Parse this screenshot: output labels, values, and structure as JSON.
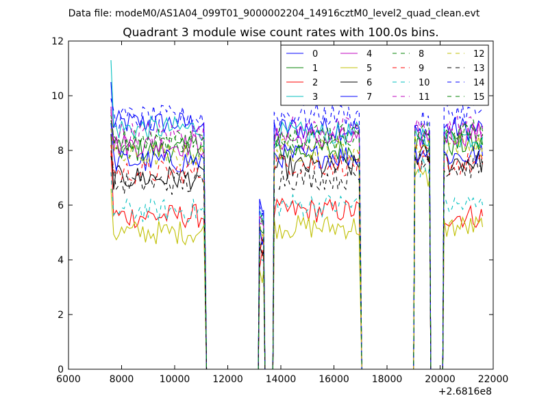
{
  "figure": {
    "suptitle": "Data file: modeM0/AS1A04_099T01_9000002204_14916cztM0_level2_quad_clean.evt"
  },
  "chart_data": {
    "type": "line",
    "title": "Quadrant 3 module wise count rates with 100.0s bins.",
    "xlabel": "",
    "ylabel": "",
    "x_offset_label": "+2.6816e8",
    "xlim": [
      6000,
      22000
    ],
    "ylim": [
      0,
      12
    ],
    "xticks": [
      6000,
      8000,
      10000,
      12000,
      14000,
      16000,
      18000,
      20000,
      22000
    ],
    "yticks": [
      0,
      2,
      4,
      6,
      8,
      10,
      12
    ],
    "xtick_labels": [
      "6000",
      "8000",
      "10000",
      "12000",
      "14000",
      "16000",
      "18000",
      "20000",
      "22000"
    ],
    "ytick_labels": [
      "0",
      "2",
      "4",
      "6",
      "8",
      "10",
      "12"
    ],
    "grid": false,
    "legend_position": "top-right",
    "legend_columns": 4,
    "segments": [
      [
        7600,
        11100
      ],
      [
        11200,
        13150
      ],
      [
        13200,
        13350
      ],
      [
        13400,
        13700
      ],
      [
        13750,
        16950
      ],
      [
        17050,
        19000
      ],
      [
        19050,
        19600
      ],
      [
        19650,
        20100
      ],
      [
        20150,
        21600
      ]
    ],
    "series": [
      {
        "name": "0",
        "color": "#0000ff",
        "dash": "solid",
        "levels": [
          9.0,
          0,
          5.8,
          0,
          8.8,
          0,
          8.6,
          0,
          8.8
        ],
        "peak": 10.5
      },
      {
        "name": "1",
        "color": "#008000",
        "dash": "solid",
        "levels": [
          8.0,
          0,
          5.0,
          0,
          8.0,
          0,
          8.2,
          0,
          8.2
        ],
        "peak": 9.5
      },
      {
        "name": "2",
        "color": "#ff0000",
        "dash": "solid",
        "levels": [
          5.6,
          0,
          4.0,
          0,
          5.8,
          0,
          7.5,
          0,
          5.6
        ],
        "peak": 8.0
      },
      {
        "name": "3",
        "color": "#00bfbf",
        "dash": "solid",
        "levels": [
          8.8,
          0,
          5.5,
          0,
          8.6,
          0,
          8.6,
          0,
          8.5
        ],
        "peak": 11.3
      },
      {
        "name": "4",
        "color": "#bf00bf",
        "dash": "solid",
        "levels": [
          8.2,
          0,
          5.2,
          0,
          8.4,
          0,
          8.5,
          0,
          8.6
        ],
        "peak": 9.6
      },
      {
        "name": "5",
        "color": "#bfbf00",
        "dash": "solid",
        "levels": [
          5.0,
          0,
          3.6,
          0,
          5.2,
          0,
          7.0,
          0,
          5.2
        ],
        "peak": 6.6
      },
      {
        "name": "6",
        "color": "#000000",
        "dash": "solid",
        "levels": [
          7.0,
          0,
          4.6,
          0,
          7.4,
          0,
          7.8,
          0,
          7.6
        ],
        "peak": 8.6
      },
      {
        "name": "7",
        "color": "#0000ff",
        "dash": "solid",
        "levels": [
          7.6,
          0,
          4.8,
          0,
          7.8,
          0,
          8.0,
          0,
          7.8
        ],
        "peak": 9.0
      },
      {
        "name": "8",
        "color": "#008000",
        "dash": "dashed",
        "levels": [
          8.4,
          0,
          5.3,
          0,
          8.6,
          0,
          8.6,
          0,
          8.7
        ],
        "peak": 9.3
      },
      {
        "name": "9",
        "color": "#ff0000",
        "dash": "dashed",
        "levels": [
          7.2,
          0,
          4.6,
          0,
          7.5,
          0,
          7.8,
          0,
          7.5
        ],
        "peak": 8.2
      },
      {
        "name": "10",
        "color": "#00bfbf",
        "dash": "dashed",
        "levels": [
          5.8,
          0,
          4.0,
          0,
          6.0,
          0,
          7.4,
          0,
          6.0
        ],
        "peak": 7.2
      },
      {
        "name": "11",
        "color": "#bf00bf",
        "dash": "dashed",
        "levels": [
          8.6,
          0,
          5.4,
          0,
          8.8,
          0,
          8.8,
          0,
          8.9
        ],
        "peak": 9.4
      },
      {
        "name": "12",
        "color": "#bfbf00",
        "dash": "dashed",
        "levels": [
          7.8,
          0,
          5.0,
          0,
          8.0,
          0,
          8.2,
          0,
          8.2
        ],
        "peak": 8.8
      },
      {
        "name": "13",
        "color": "#000000",
        "dash": "dashed",
        "levels": [
          6.8,
          0,
          4.4,
          0,
          7.0,
          0,
          7.8,
          0,
          7.4
        ],
        "peak": 7.8
      },
      {
        "name": "14",
        "color": "#0000ff",
        "dash": "dashed",
        "levels": [
          9.2,
          0,
          5.8,
          0,
          9.3,
          0,
          9.0,
          0,
          9.4
        ],
        "peak": 9.9
      },
      {
        "name": "15",
        "color": "#008000",
        "dash": "dashed",
        "levels": [
          8.2,
          0,
          5.2,
          0,
          8.4,
          0,
          8.5,
          0,
          8.6
        ],
        "peak": 9.1
      }
    ]
  }
}
